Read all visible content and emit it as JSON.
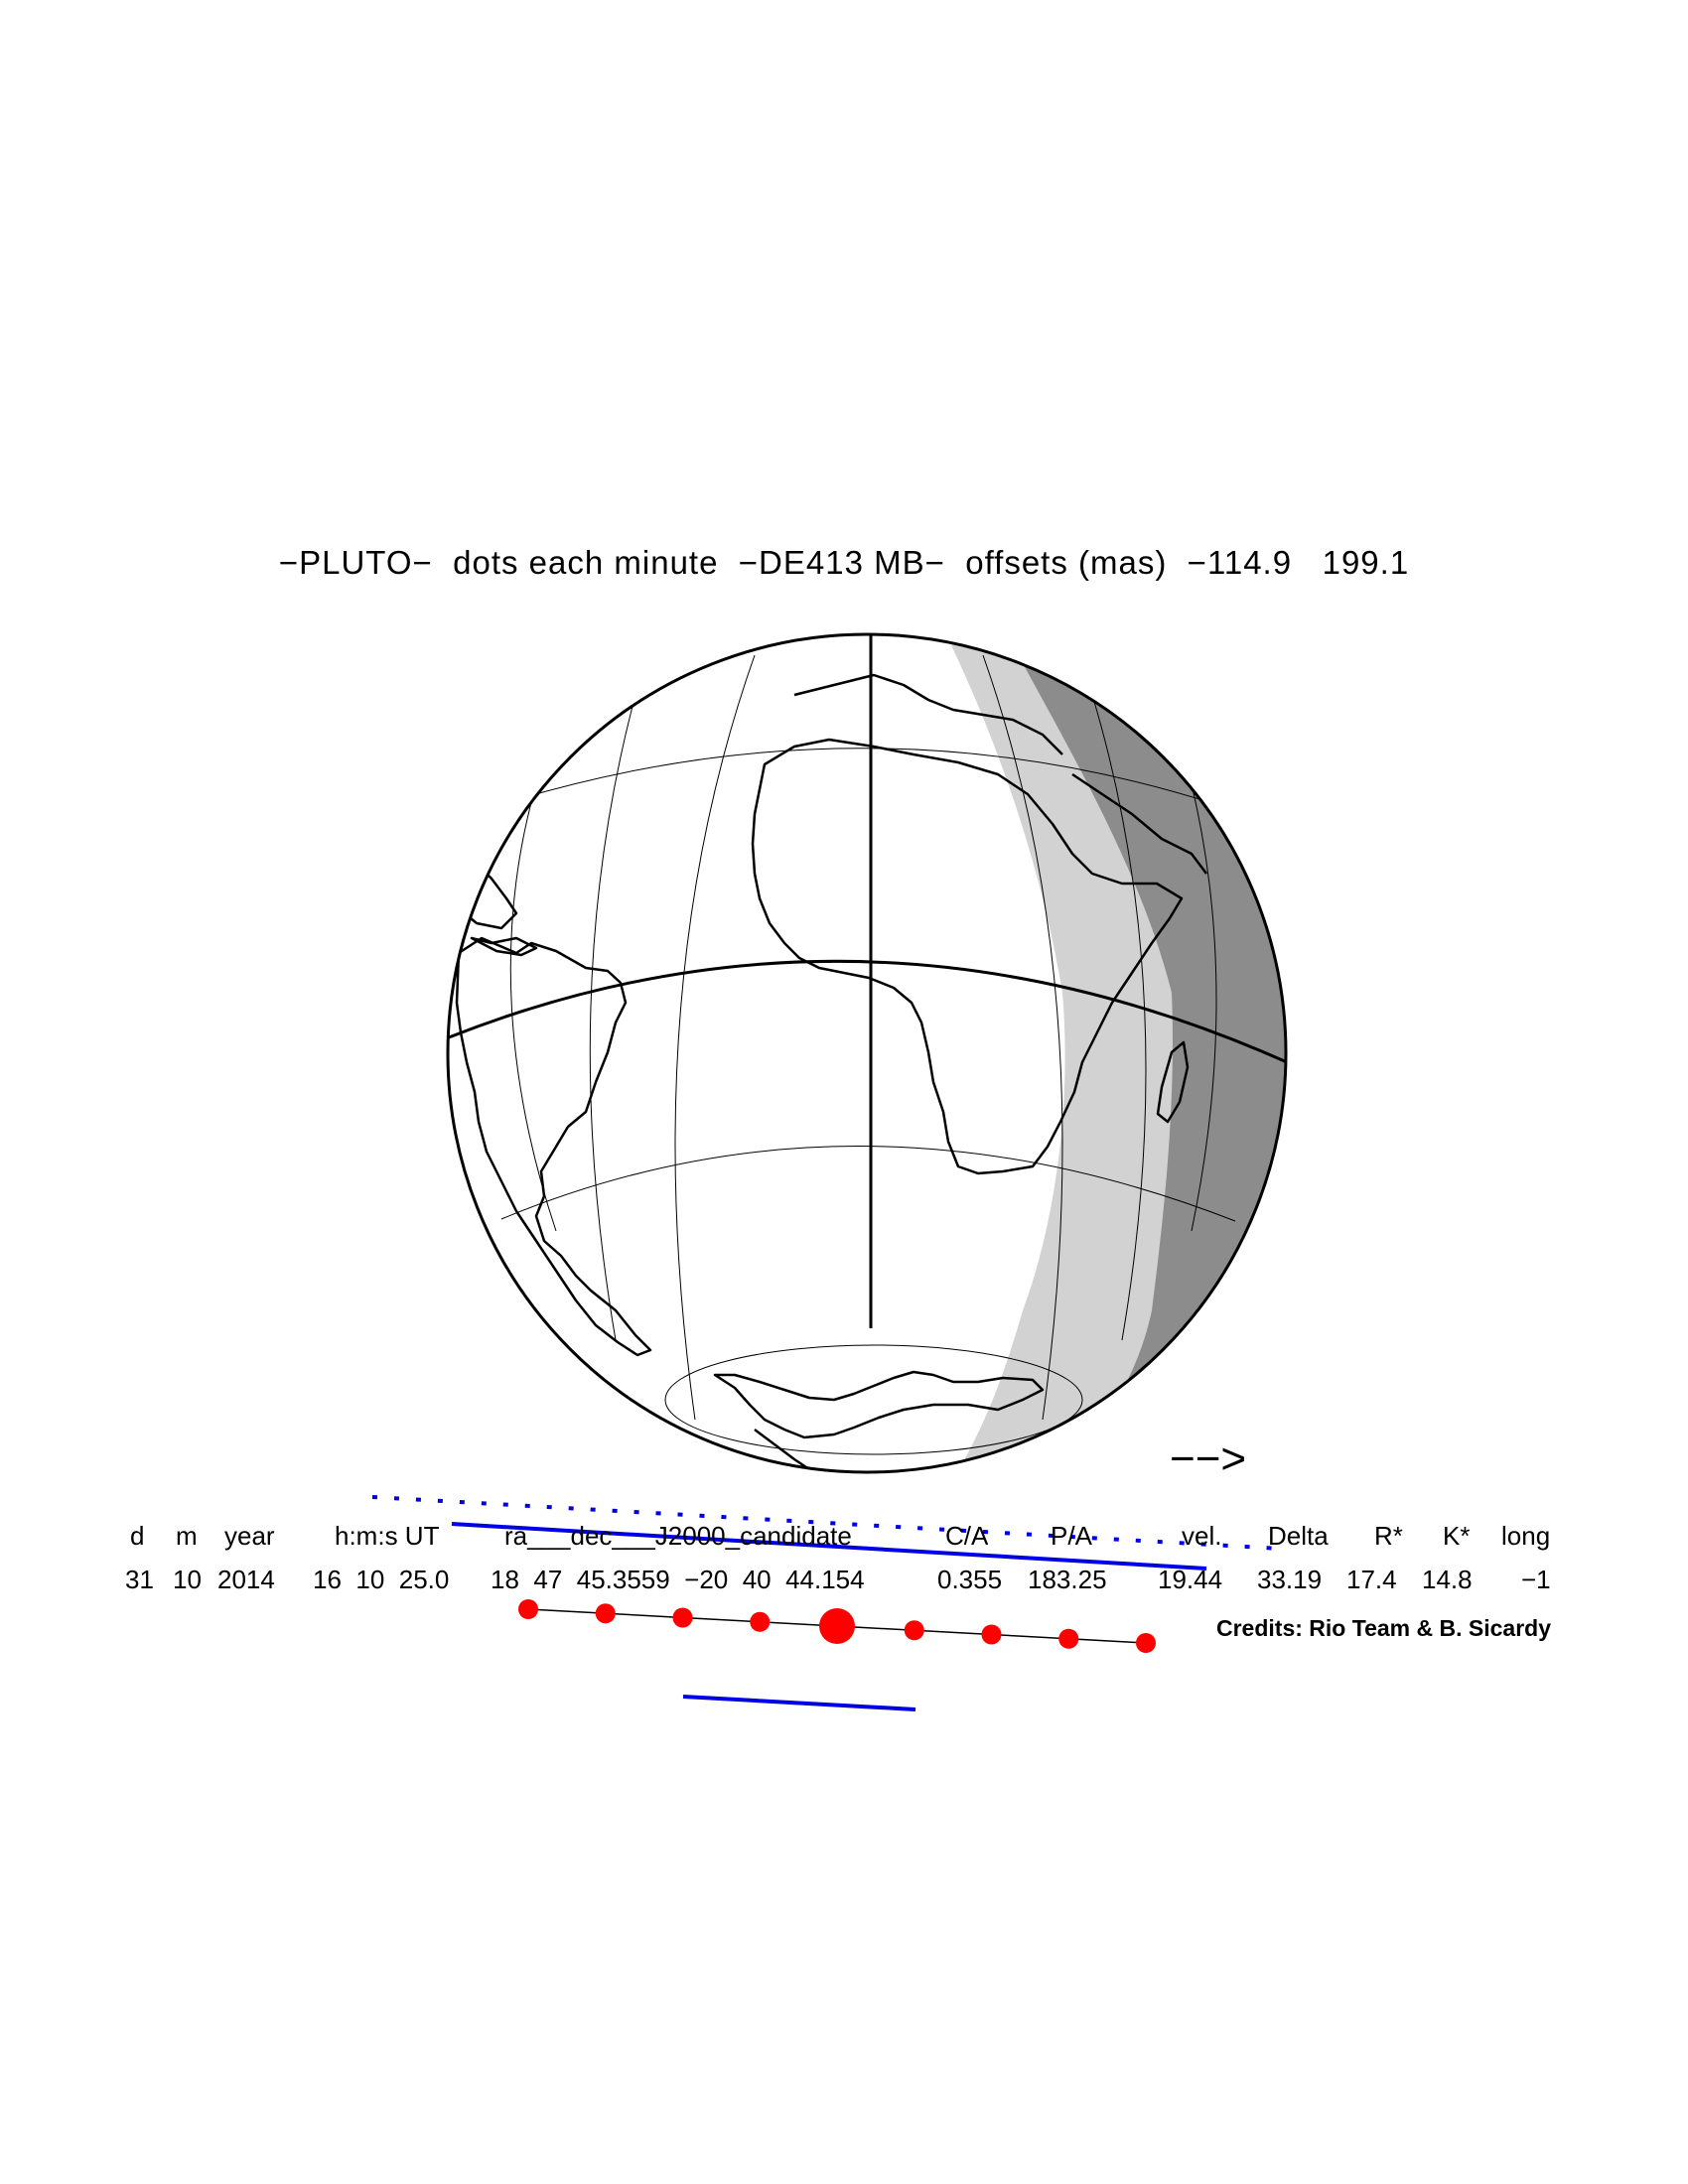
{
  "title": "−PLUTO−  dots each minute  −DE413 MB−  offsets (mas)  −114.9   199.1",
  "direction_arrow": "−−>",
  "table": {
    "headers": [
      "d",
      "m",
      "year",
      "h:m:s UT",
      "ra___dec___J2000_candidate",
      "C/A",
      "P/A",
      "vel.",
      "Delta",
      "R*",
      "K*",
      "long"
    ],
    "values": [
      "31",
      "10",
      "2014",
      "16  10  25.0",
      "18  47  45.3559  −20  40  44.154",
      "0.355",
      "183.25",
      "19.44",
      "33.19",
      "17.4",
      "14.8",
      "−1"
    ]
  },
  "credits": "Credits: Rio Team & B. Sicardy",
  "colors": {
    "night": "#8c8c8c",
    "twilight": "#d2d2d2",
    "chord": "#0000e6",
    "timing_dots": "#ff0000"
  },
  "timing_dots": {
    "count": 9,
    "central_index": 4
  }
}
